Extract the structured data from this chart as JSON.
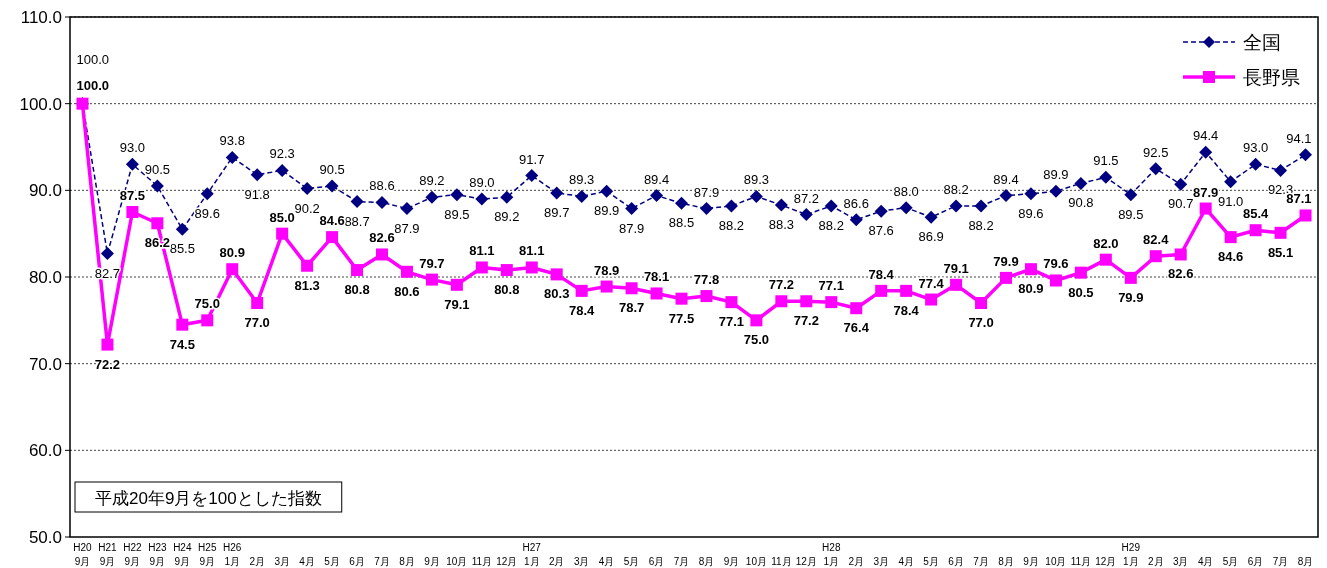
{
  "chart_data": {
    "type": "line",
    "categories": [
      "H20\n9月",
      "H21\n9月",
      "H22\n9月",
      "H23\n9月",
      "H24\n9月",
      "H25\n9月",
      "H26\n1月",
      "2月",
      "3月",
      "4月",
      "5月",
      "6月",
      "7月",
      "8月",
      "9月",
      "10月",
      "11月",
      "12月",
      "H27\n1月",
      "2月",
      "3月",
      "4月",
      "5月",
      "6月",
      "7月",
      "8月",
      "9月",
      "10月",
      "11月",
      "12月",
      "H28\n1月",
      "2月",
      "3月",
      "4月",
      "5月",
      "6月",
      "7月",
      "8月",
      "9月",
      "10月",
      "11月",
      "12月",
      "H29\n1月",
      "2月",
      "3月",
      "4月",
      "5月",
      "6月",
      "7月",
      "8月"
    ],
    "series": [
      {
        "name": "全国",
        "color": "#000080",
        "marker": "diamond",
        "line_style": "dashed",
        "values": [
          100.0,
          82.7,
          93.0,
          90.5,
          85.5,
          89.6,
          93.8,
          91.8,
          92.3,
          90.2,
          90.5,
          88.7,
          88.6,
          87.9,
          89.2,
          89.5,
          89.0,
          89.2,
          91.7,
          89.7,
          89.3,
          89.9,
          87.9,
          89.4,
          88.5,
          87.9,
          88.2,
          89.3,
          88.3,
          87.2,
          88.2,
          86.6,
          87.6,
          88.0,
          86.9,
          88.2,
          88.2,
          89.4,
          89.6,
          89.9,
          90.8,
          91.5,
          89.5,
          92.5,
          90.7,
          94.4,
          91.0,
          93.0,
          92.3,
          94.1
        ],
        "value_labels": [
          "100.0",
          "82.7",
          "93.0",
          "90.5",
          "85.5",
          "89.6",
          "93.8",
          "91.8",
          "92.3",
          "90.2",
          "90.5",
          "88.7",
          "88.6",
          "87.9",
          "89.2",
          "89.5",
          "89.0",
          "89.2",
          "91.7",
          "89.7",
          "89.3",
          "89.9",
          "87.9",
          "89.4",
          "88.5",
          "87.9",
          "88.2",
          "89.3",
          "88.3",
          "87.2",
          "88.2",
          "86.6",
          "87.6",
          "88.0",
          "86.9",
          "88.2",
          "88.2",
          "89.4",
          "89.6",
          "89.9",
          "90.8",
          "91.5",
          "89.5",
          "92.5",
          "90.7",
          "94.4",
          "91.0",
          "93.0",
          "92.3",
          "94.1"
        ]
      },
      {
        "name": "長野県",
        "color": "#ff00ff",
        "marker": "square",
        "line_style": "solid",
        "values": [
          100.0,
          72.2,
          87.5,
          86.2,
          74.5,
          75.0,
          80.9,
          77.0,
          85.0,
          81.3,
          84.6,
          80.8,
          82.6,
          80.6,
          79.7,
          79.1,
          81.1,
          80.8,
          81.1,
          80.3,
          78.4,
          78.9,
          78.7,
          78.1,
          77.5,
          77.8,
          77.1,
          75.0,
          77.2,
          77.2,
          77.1,
          76.4,
          78.4,
          78.4,
          77.4,
          79.1,
          77.0,
          79.9,
          80.9,
          79.6,
          80.5,
          82.0,
          79.9,
          82.4,
          82.6,
          87.9,
          84.6,
          85.4,
          85.1,
          87.1
        ],
        "value_labels": [
          "100.0",
          "72.2",
          "87.5",
          "86.2",
          "74.5",
          "75.0",
          "80.9",
          "77.0",
          "85.0",
          "81.3",
          "84.6",
          "80.8",
          "82.6",
          "80.6",
          "79.7",
          "79.1",
          "81.1",
          "80.8",
          "81.1",
          "80.3",
          "78.4",
          "78.9",
          "78.7",
          "78.1",
          "77.5",
          "77.8",
          "77.1",
          "75.0",
          "77.2",
          "77.2",
          "77.1",
          "76.4",
          "78.4",
          "78.4",
          "77.4",
          "79.1",
          "77.0",
          "79.9",
          "80.9",
          "79.6",
          "80.5",
          "82.0",
          "79.9",
          "82.4",
          "82.6",
          "87.9",
          "84.6",
          "85.4",
          "85.1",
          "87.1"
        ]
      }
    ],
    "ylim": [
      50,
      110
    ],
    "yticks": [
      {
        "value": 50,
        "label": "50.0"
      },
      {
        "value": 60,
        "label": "60.0"
      },
      {
        "value": 70,
        "label": "70.0"
      },
      {
        "value": 80,
        "label": "80.0"
      },
      {
        "value": 90,
        "label": "90.0"
      },
      {
        "value": 100,
        "label": "100.0"
      },
      {
        "value": 110,
        "label": "110.0"
      }
    ],
    "grid": "y",
    "legend": "top right",
    "annotations": [
      "平成20年9月を100とした指数"
    ]
  }
}
